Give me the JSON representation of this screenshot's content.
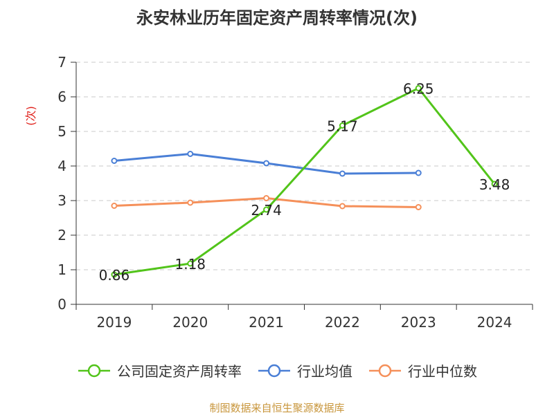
{
  "chart_data": {
    "type": "line",
    "title": "永安林业历年固定资产周转率情况(次)",
    "ylabel": "(次)",
    "xlabel": "",
    "categories": [
      "2019",
      "2020",
      "2021",
      "2022",
      "2023",
      "2024"
    ],
    "ylim": [
      0,
      7
    ],
    "yticks": [
      0,
      1,
      2,
      3,
      4,
      5,
      6,
      7
    ],
    "grid": true,
    "legend_position": "bottom",
    "series": [
      {
        "name": "公司固定资产周转率",
        "color": "#52c41a",
        "values": [
          0.86,
          1.18,
          2.74,
          5.17,
          6.25,
          3.48
        ],
        "labels": [
          "0.86",
          "1.18",
          "2.74",
          "5.17",
          "6.25",
          "3.48"
        ],
        "show_labels": true
      },
      {
        "name": "行业均值",
        "color": "#4a7fd6",
        "values": [
          4.15,
          4.35,
          4.08,
          3.78,
          3.8,
          null
        ],
        "show_labels": false
      },
      {
        "name": "行业中位数",
        "color": "#f5905a",
        "values": [
          2.85,
          2.94,
          3.07,
          2.84,
          2.81,
          null
        ],
        "show_labels": false
      }
    ]
  },
  "footer": {
    "source": "制图数据来自恒生聚源数据库",
    "source_color": "#c8963c"
  },
  "style": {
    "ylabel_color": "#e0201a",
    "axis_color": "#333333",
    "grid_color": "#c8c8c8",
    "text_color": "#333333"
  }
}
